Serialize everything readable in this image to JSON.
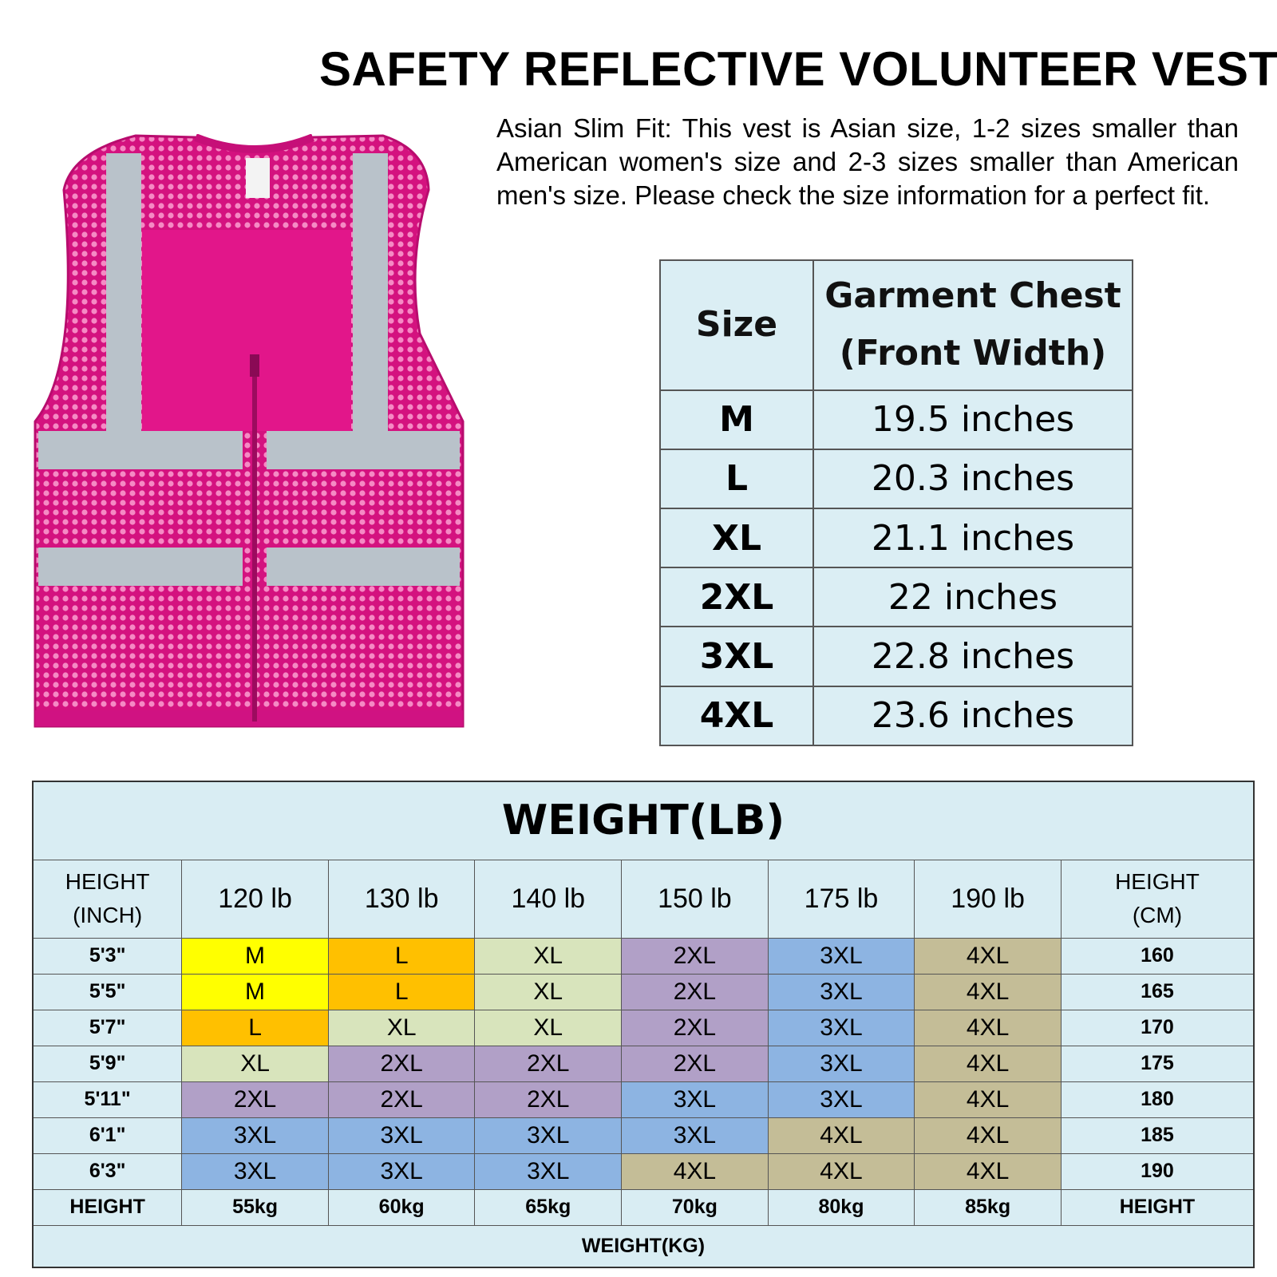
{
  "title": "SAFETY REFLECTIVE VOLUNTEER VEST",
  "description": "Asian Slim Fit: This vest is Asian size, 1-2 sizes smaller than American women's size and 2-3 sizes smaller than American men's size. Please check the size information for a perfect fit.",
  "vest": {
    "color": "#e2168a",
    "reflective_color": "#b9c2ca"
  },
  "chest_table": {
    "header_size": "Size",
    "header_chest_line1": "Garment Chest",
    "header_chest_line2": "(Front Width)",
    "rows": [
      {
        "size": "M",
        "chest": "19.5 inches"
      },
      {
        "size": "L",
        "chest": "20.3 inches"
      },
      {
        "size": "XL",
        "chest": "21.1 inches"
      },
      {
        "size": "2XL",
        "chest": "22 inches"
      },
      {
        "size": "3XL",
        "chest": "22.8 inches"
      },
      {
        "size": "4XL",
        "chest": "23.6 inches"
      }
    ]
  },
  "size_chart": {
    "title": "WEIGHT(LB)",
    "height_inch_line1": "HEIGHT",
    "height_inch_line2": "(INCH)",
    "height_cm_line1": "HEIGHT",
    "height_cm_line2": "(CM)",
    "weights_lb": [
      "120 lb",
      "130 lb",
      "140 lb",
      "150 lb",
      "175 lb",
      "190 lb"
    ],
    "rows": [
      {
        "inch": "5'3\"",
        "cm": "160",
        "sizes": [
          "M",
          "L",
          "XL",
          "2XL",
          "3XL",
          "4XL"
        ]
      },
      {
        "inch": "5'5\"",
        "cm": "165",
        "sizes": [
          "M",
          "L",
          "XL",
          "2XL",
          "3XL",
          "4XL"
        ]
      },
      {
        "inch": "5'7\"",
        "cm": "170",
        "sizes": [
          "L",
          "XL",
          "XL",
          "2XL",
          "3XL",
          "4XL"
        ]
      },
      {
        "inch": "5'9\"",
        "cm": "175",
        "sizes": [
          "XL",
          "2XL",
          "2XL",
          "2XL",
          "3XL",
          "4XL"
        ]
      },
      {
        "inch": "5'11\"",
        "cm": "180",
        "sizes": [
          "2XL",
          "2XL",
          "2XL",
          "3XL",
          "3XL",
          "4XL"
        ]
      },
      {
        "inch": "6'1\"",
        "cm": "185",
        "sizes": [
          "3XL",
          "3XL",
          "3XL",
          "3XL",
          "4XL",
          "4XL"
        ]
      },
      {
        "inch": "6'3\"",
        "cm": "190",
        "sizes": [
          "3XL",
          "3XL",
          "3XL",
          "4XL",
          "4XL",
          "4XL"
        ]
      }
    ],
    "kg_left_label": "HEIGHT",
    "kg_right_label": "HEIGHT",
    "weights_kg": [
      "55kg",
      "60kg",
      "65kg",
      "70kg",
      "80kg",
      "85kg"
    ],
    "footer": "WEIGHT(KG)",
    "size_colors": {
      "M": "#ffff00",
      "L": "#ffc000",
      "XL": "#d8e4bc",
      "2XL": "#b1a0c7",
      "3XL": "#8db4e2",
      "4XL": "#c4bd97"
    }
  }
}
